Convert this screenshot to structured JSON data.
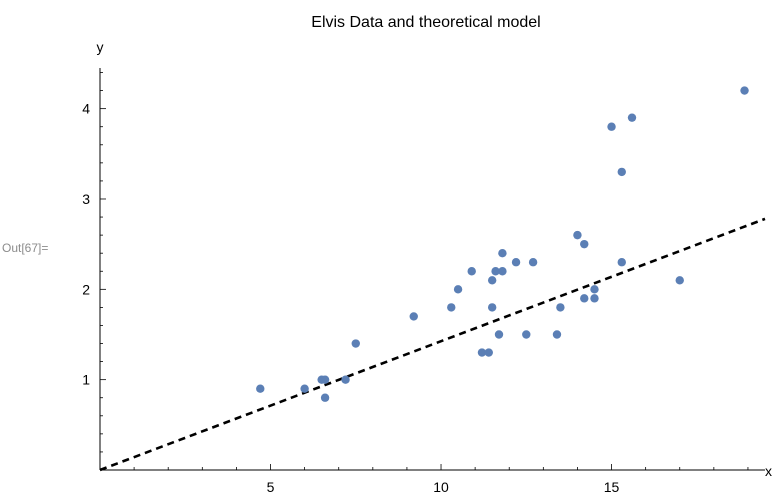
{
  "cell_label": "Out[67]=",
  "chart_data": {
    "type": "scatter",
    "title": "Elvis Data and theoretical model",
    "xlabel": "x",
    "ylabel": "y",
    "xlim": [
      0,
      19.5
    ],
    "ylim": [
      0,
      4.45
    ],
    "x_ticks": [
      5,
      10,
      15
    ],
    "y_ticks": [
      1,
      2,
      3,
      4
    ],
    "grid": false,
    "points": [
      {
        "x": 4.7,
        "y": 0.9
      },
      {
        "x": 6.0,
        "y": 0.9
      },
      {
        "x": 6.5,
        "y": 1.0
      },
      {
        "x": 6.6,
        "y": 1.0
      },
      {
        "x": 6.6,
        "y": 0.8
      },
      {
        "x": 7.2,
        "y": 1.0
      },
      {
        "x": 7.5,
        "y": 1.4
      },
      {
        "x": 9.2,
        "y": 1.7
      },
      {
        "x": 10.3,
        "y": 1.8
      },
      {
        "x": 10.5,
        "y": 2.0
      },
      {
        "x": 10.9,
        "y": 2.2
      },
      {
        "x": 11.2,
        "y": 1.3
      },
      {
        "x": 11.4,
        "y": 1.3
      },
      {
        "x": 11.5,
        "y": 1.8
      },
      {
        "x": 11.5,
        "y": 2.1
      },
      {
        "x": 11.6,
        "y": 2.2
      },
      {
        "x": 11.7,
        "y": 1.5
      },
      {
        "x": 11.8,
        "y": 2.4
      },
      {
        "x": 11.8,
        "y": 2.2
      },
      {
        "x": 12.2,
        "y": 2.3
      },
      {
        "x": 12.5,
        "y": 1.5
      },
      {
        "x": 12.7,
        "y": 2.3
      },
      {
        "x": 13.4,
        "y": 1.5
      },
      {
        "x": 13.5,
        "y": 1.8
      },
      {
        "x": 14.0,
        "y": 2.6
      },
      {
        "x": 14.2,
        "y": 2.5
      },
      {
        "x": 14.2,
        "y": 1.9
      },
      {
        "x": 14.5,
        "y": 2.0
      },
      {
        "x": 14.5,
        "y": 1.9
      },
      {
        "x": 15.0,
        "y": 3.8
      },
      {
        "x": 15.3,
        "y": 3.3
      },
      {
        "x": 15.3,
        "y": 2.3
      },
      {
        "x": 15.6,
        "y": 3.9
      },
      {
        "x": 17.0,
        "y": 2.1
      },
      {
        "x": 18.9,
        "y": 4.2
      }
    ],
    "model_line": {
      "x": [
        0,
        19.5
      ],
      "y": [
        0,
        2.78
      ],
      "style": "dashed"
    },
    "colors": {
      "points": "#5b7fb5",
      "model_line": "#000000",
      "axes": "#000000"
    }
  }
}
